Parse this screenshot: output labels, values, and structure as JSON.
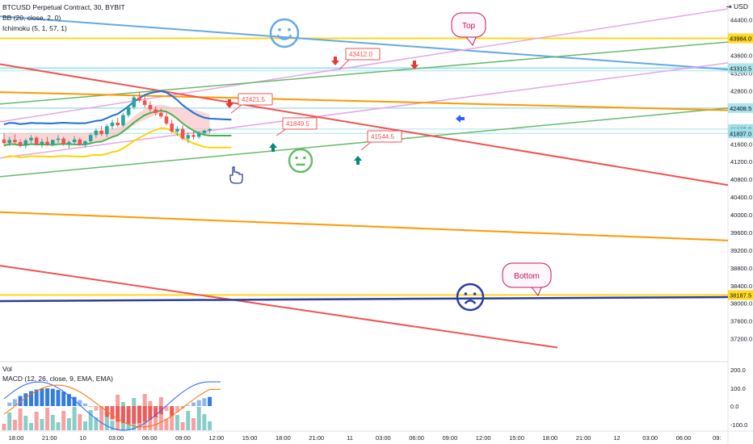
{
  "legend": {
    "symbol": "BTCUSD Perpetual Contract, 30, BYBIT",
    "bb": "BB (20, close, 2, 0)",
    "ichimoku": "Ichimoku (5, 1, 57, 1)",
    "vol": "Vol",
    "macd": "MACD (12, 26, close, 9, EMA, EMA)",
    "currency": "USD"
  },
  "colors": {
    "up": "#26a69a",
    "down": "#ef5350",
    "yellow": "#ffd400",
    "orange": "#ff9800",
    "green": "#66bb6a",
    "red": "#ef5350",
    "blue": "#64a8e8",
    "navy": "#2c3e9e",
    "violet": "#e6a6e6",
    "cyan": "#9ee0ea",
    "price_axis_bg": "#ffffff",
    "accent_blue": "#2962ff"
  },
  "chart_data": {
    "type": "candlestick",
    "ylim": [
      36700,
      44850
    ],
    "y_ticks": [
      37200.0,
      37600.0,
      38000.0,
      38400.0,
      38800.0,
      39200.0,
      39600.0,
      40000.0,
      40400.0,
      40800.0,
      41200.0,
      41600.0,
      42000.0,
      42400.0,
      42800.0,
      43200.0,
      43600.0,
      44000.0,
      44400.0
    ],
    "x_ticks": [
      "18:00",
      "21:00",
      "10",
      "03:00",
      "06:00",
      "09:00",
      "12:00",
      "15:00",
      "18:00",
      "21:00",
      "11",
      "03:00",
      "06:00",
      "09:00",
      "12:00",
      "15:00",
      "18:00",
      "21:00",
      "12",
      "03:00",
      "06:00",
      "09:"
    ],
    "price_labels": [
      {
        "text": "43984.0",
        "value": 43984,
        "color": "#ffd400"
      },
      {
        "text": "43310.5",
        "value": 43310.5,
        "color": "#9ee0ea"
      },
      {
        "text": "42408.5",
        "value": 42408.5,
        "color": "#9ee0ea"
      },
      {
        "text": "41935.5",
        "value": 41935.5,
        "color": "#9ee0ea"
      },
      {
        "text": "01:38",
        "value": 41850,
        "color": "#9ee0ea"
      },
      {
        "text": "41837.0",
        "value": 41837,
        "color": "#9ee0ea"
      },
      {
        "text": "38187.5",
        "value": 38187.5,
        "color": "#ffd400"
      }
    ],
    "candles": [
      {
        "o": 41700,
        "h": 41850,
        "l": 41580,
        "c": 41620
      },
      {
        "o": 41620,
        "h": 41760,
        "l": 41550,
        "c": 41690
      },
      {
        "o": 41690,
        "h": 41820,
        "l": 41600,
        "c": 41640
      },
      {
        "o": 41640,
        "h": 41700,
        "l": 41520,
        "c": 41560
      },
      {
        "o": 41560,
        "h": 41720,
        "l": 41500,
        "c": 41680
      },
      {
        "o": 41680,
        "h": 41800,
        "l": 41620,
        "c": 41740
      },
      {
        "o": 41740,
        "h": 41780,
        "l": 41560,
        "c": 41600
      },
      {
        "o": 41600,
        "h": 41720,
        "l": 41520,
        "c": 41650
      },
      {
        "o": 41650,
        "h": 41760,
        "l": 41560,
        "c": 41580
      },
      {
        "o": 41580,
        "h": 41700,
        "l": 41540,
        "c": 41690
      },
      {
        "o": 41690,
        "h": 41800,
        "l": 41620,
        "c": 41720
      },
      {
        "o": 41720,
        "h": 41760,
        "l": 41560,
        "c": 41600
      },
      {
        "o": 41600,
        "h": 41680,
        "l": 41500,
        "c": 41640
      },
      {
        "o": 41640,
        "h": 41780,
        "l": 41580,
        "c": 41700
      },
      {
        "o": 41700,
        "h": 41740,
        "l": 41560,
        "c": 41580
      },
      {
        "o": 41580,
        "h": 41680,
        "l": 41520,
        "c": 41660
      },
      {
        "o": 41660,
        "h": 41840,
        "l": 41620,
        "c": 41800
      },
      {
        "o": 41800,
        "h": 41950,
        "l": 41740,
        "c": 41900
      },
      {
        "o": 41900,
        "h": 42000,
        "l": 41780,
        "c": 41820
      },
      {
        "o": 41820,
        "h": 42050,
        "l": 41760,
        "c": 42000
      },
      {
        "o": 42000,
        "h": 42150,
        "l": 41930,
        "c": 42080
      },
      {
        "o": 42080,
        "h": 42180,
        "l": 41980,
        "c": 42020
      },
      {
        "o": 42020,
        "h": 42300,
        "l": 41980,
        "c": 42250
      },
      {
        "o": 42250,
        "h": 42480,
        "l": 42200,
        "c": 42430
      },
      {
        "o": 42430,
        "h": 42700,
        "l": 42380,
        "c": 42650
      },
      {
        "o": 42650,
        "h": 42760,
        "l": 42540,
        "c": 42580
      },
      {
        "o": 42580,
        "h": 42700,
        "l": 42420,
        "c": 42480
      },
      {
        "o": 42480,
        "h": 42560,
        "l": 42330,
        "c": 42380
      },
      {
        "o": 42380,
        "h": 42450,
        "l": 42240,
        "c": 42300
      },
      {
        "o": 42300,
        "h": 42400,
        "l": 42180,
        "c": 42220
      },
      {
        "o": 42220,
        "h": 42300,
        "l": 42020,
        "c": 42060
      },
      {
        "o": 42060,
        "h": 42150,
        "l": 41850,
        "c": 41880
      },
      {
        "o": 41880,
        "h": 42000,
        "l": 41780,
        "c": 41940
      },
      {
        "o": 41940,
        "h": 42020,
        "l": 41680,
        "c": 41720
      },
      {
        "o": 41720,
        "h": 41860,
        "l": 41620,
        "c": 41800
      },
      {
        "o": 41800,
        "h": 41880,
        "l": 41700,
        "c": 41760
      },
      {
        "o": 41760,
        "h": 41880,
        "l": 41720,
        "c": 41840
      },
      {
        "o": 41840,
        "h": 41920,
        "l": 41800,
        "c": 41900
      },
      {
        "o": 41900,
        "h": 41960,
        "l": 41850,
        "c": 41935.5
      }
    ],
    "annotations": [
      {
        "text": "Top",
        "kind": "callout"
      },
      {
        "text": "Bottom",
        "kind": "callout"
      },
      {
        "text": "43412.0",
        "kind": "price-tag"
      },
      {
        "text": "42421.5",
        "kind": "price-tag"
      },
      {
        "text": "41849.5",
        "kind": "price-tag"
      },
      {
        "text": "41544.5",
        "kind": "price-tag"
      }
    ],
    "volume_axis": [
      "200.0",
      "100.0",
      "0.0",
      "-100.0"
    ]
  }
}
